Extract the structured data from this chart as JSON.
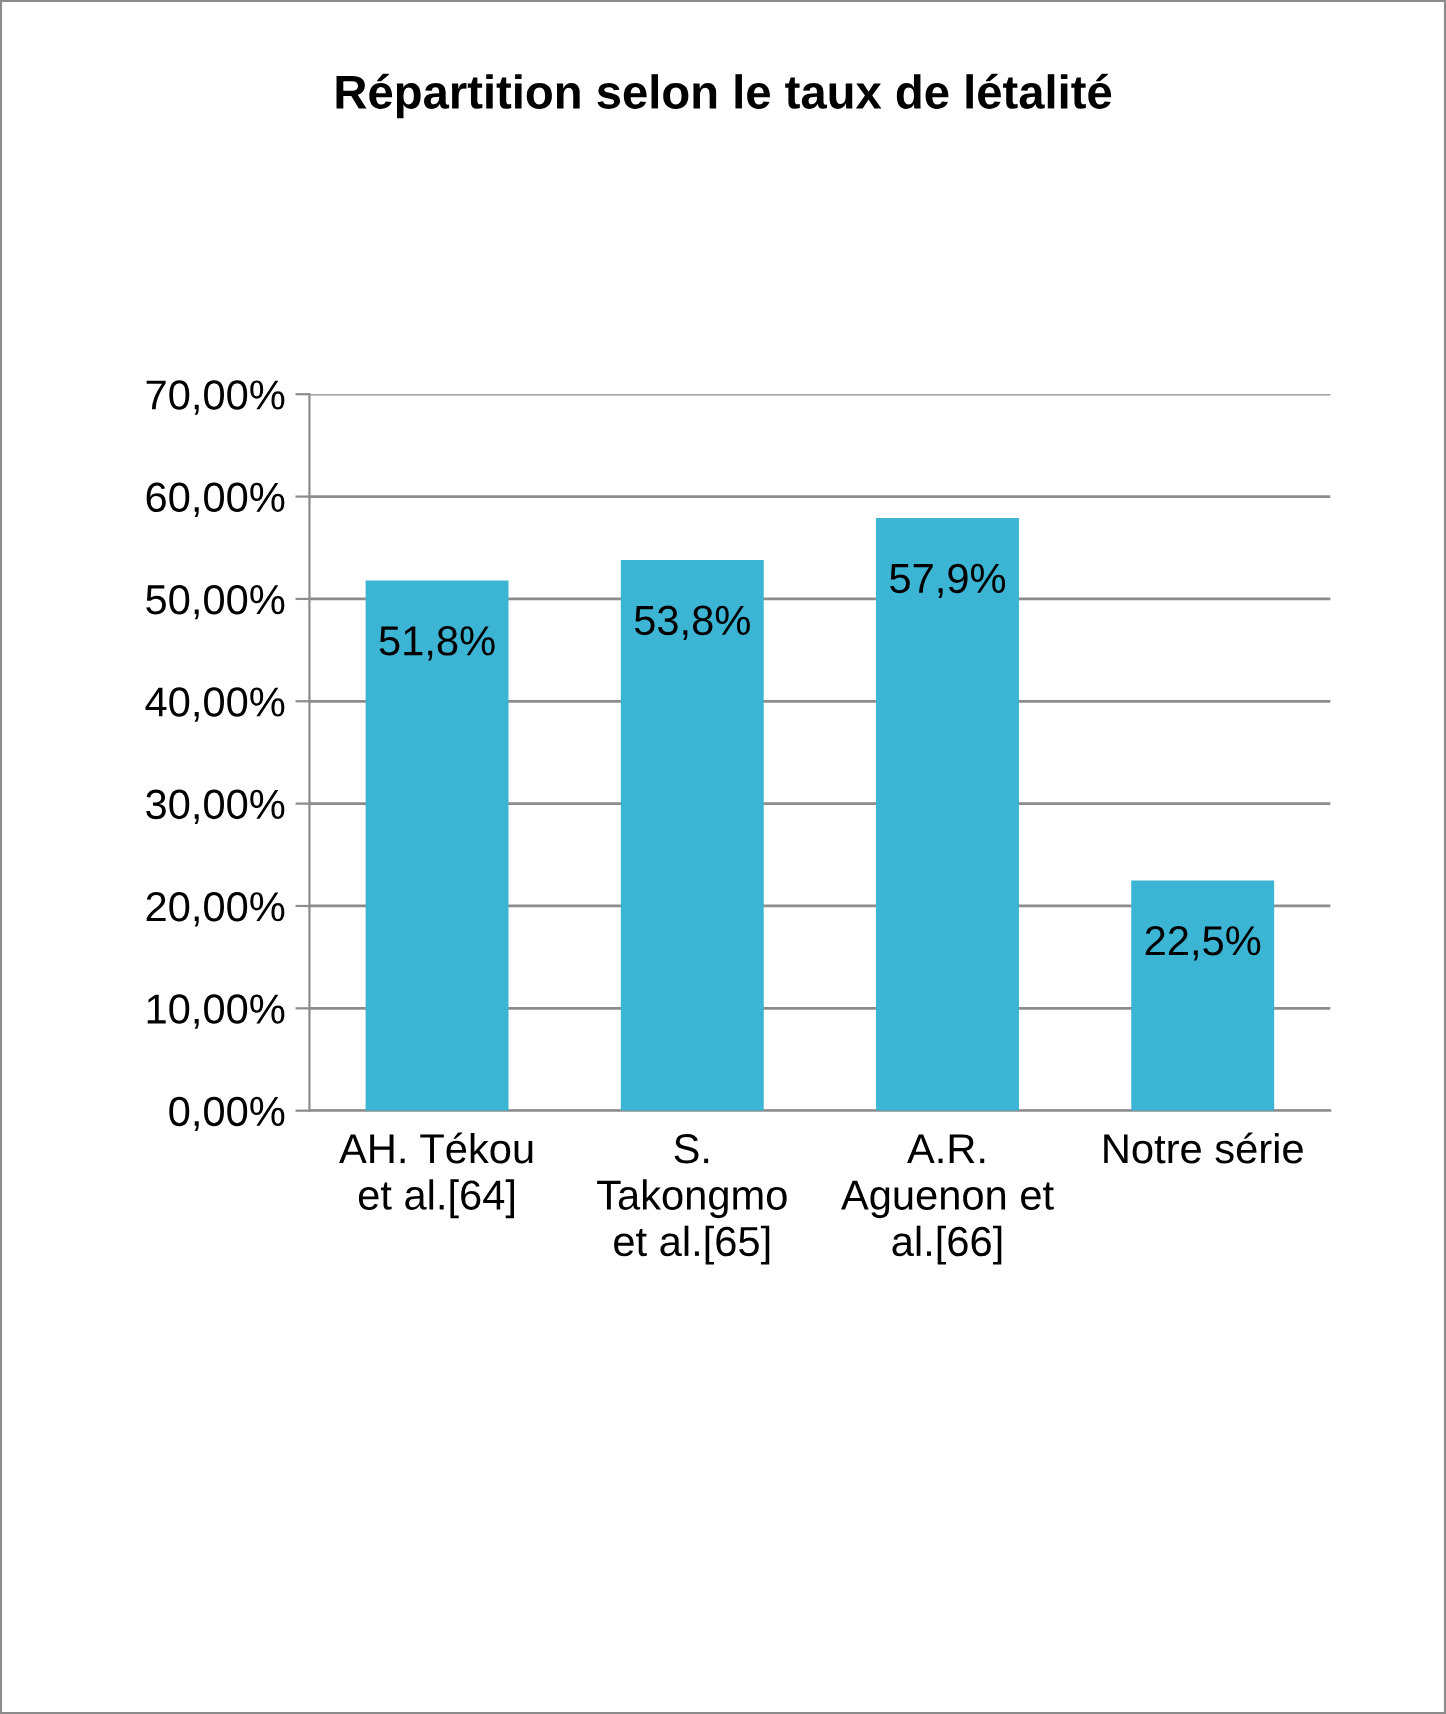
{
  "chart_data": {
    "type": "bar",
    "title": "Répartition selon le taux de létalité",
    "categories": [
      "AH. Tékou\net al.[64]",
      "S.\nTakongmo\net al.[65]",
      "A.R.\nAguenon et\nal.[66]",
      "Notre série"
    ],
    "values": [
      51.8,
      53.8,
      57.9,
      22.5
    ],
    "value_labels": [
      "51,8%",
      "53,8%",
      "57,9%",
      "22,5%"
    ],
    "color": "#3cb4d4",
    "ylim": [
      0,
      70
    ],
    "yticks": [
      {
        "value": 0,
        "label": "0,00%"
      },
      {
        "value": 10,
        "label": "10,00%"
      },
      {
        "value": 20,
        "label": "20,00%"
      },
      {
        "value": 30,
        "label": "30,00%"
      },
      {
        "value": 40,
        "label": "40,00%"
      },
      {
        "value": 50,
        "label": "50,00%"
      },
      {
        "value": 60,
        "label": "60,00%"
      },
      {
        "value": 70,
        "label": "70,00%"
      }
    ],
    "grid": "y",
    "legend": false
  }
}
